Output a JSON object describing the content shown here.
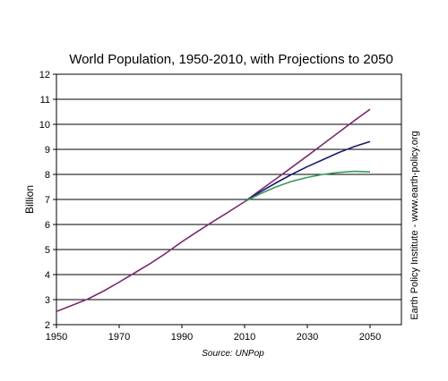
{
  "chart_data": {
    "type": "line",
    "title": "World Population, 1950-2010, with Projections to 2050",
    "xlabel": "",
    "ylabel": "Billion",
    "xlim": [
      1950,
      2060
    ],
    "ylim": [
      2,
      12
    ],
    "x_ticks": [
      "1950",
      "1970",
      "1990",
      "2010",
      "2030",
      "2050"
    ],
    "y_ticks": [
      "2",
      "3",
      "4",
      "5",
      "6",
      "7",
      "8",
      "9",
      "10",
      "11",
      "12"
    ],
    "grid": "horizontal",
    "source": "Source: UNPop",
    "side_note": "Earth Policy Institute - www.earth-policy.org",
    "series": [
      {
        "color": "#7b2c6e",
        "x": [
          1950,
          1955,
          1960,
          1965,
          1970,
          1975,
          1980,
          1985,
          1990,
          1995,
          2000,
          2005,
          2010,
          2015,
          2020,
          2025,
          2030,
          2035,
          2040,
          2045,
          2050
        ],
        "y": [
          2.53,
          2.77,
          3.02,
          3.34,
          3.7,
          4.07,
          4.45,
          4.86,
          5.31,
          5.72,
          6.12,
          6.51,
          6.91,
          7.37,
          7.82,
          8.28,
          8.74,
          9.21,
          9.68,
          10.15,
          10.6
        ]
      },
      {
        "color": "#1a1a6e",
        "x": [
          2010,
          2015,
          2020,
          2025,
          2030,
          2035,
          2040,
          2045,
          2050
        ],
        "y": [
          6.91,
          7.3,
          7.66,
          8.0,
          8.31,
          8.59,
          8.87,
          9.11,
          9.31
        ]
      },
      {
        "color": "#3a9a5c",
        "x": [
          2010,
          2015,
          2020,
          2025,
          2030,
          2035,
          2040,
          2045,
          2050
        ],
        "y": [
          6.91,
          7.23,
          7.5,
          7.72,
          7.88,
          8.0,
          8.08,
          8.12,
          8.1
        ]
      }
    ]
  }
}
